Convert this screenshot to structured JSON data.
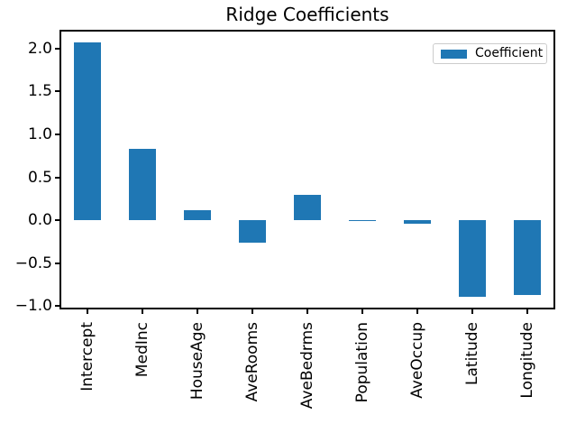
{
  "chart_data": {
    "type": "bar",
    "title": "Ridge Coefficients",
    "categories": [
      "Intercept",
      "MedInc",
      "HouseAge",
      "AveRooms",
      "AveBedrms",
      "Population",
      "AveOccup",
      "Latitude",
      "Longitude"
    ],
    "values": [
      2.07,
      0.83,
      0.12,
      -0.26,
      0.3,
      -0.002,
      -0.04,
      -0.89,
      -0.87
    ],
    "series_name": "Coefficient",
    "legend": {
      "label": "Coefficient",
      "position": "upper-right"
    },
    "bar_color": "#1f77b4",
    "axis_color": "#000000",
    "legend_border_color": "#cccccc",
    "y_ticks": [
      2.0,
      1.5,
      1.0,
      0.5,
      0.0,
      -0.5,
      -1.0
    ],
    "y_tick_labels": [
      "2.0",
      "1.5",
      "1.0",
      "0.5",
      "0.0",
      "−0.5",
      "−1.0"
    ],
    "ylim": [
      -1.04,
      2.22
    ],
    "xlabel": "",
    "ylabel": "",
    "grid": false,
    "x_tick_rotation_degrees": 90
  }
}
